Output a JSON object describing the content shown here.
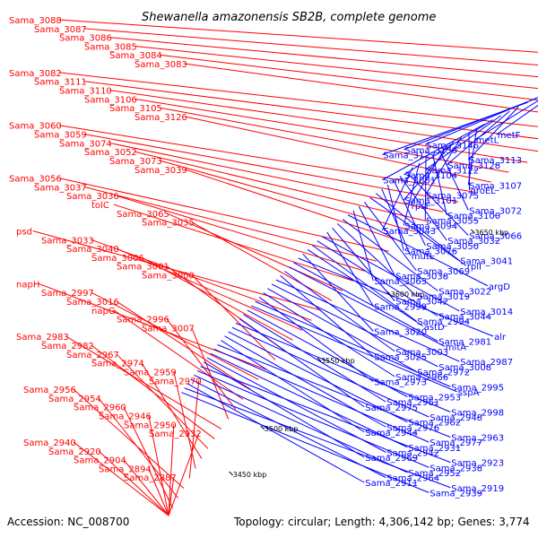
{
  "title": "Shewanella amazonensis SB2B, complete genome",
  "accession": "Accession: NC_008700",
  "summary": "Topology: circular; Length: 4,306,142 bp; Genes: 3,774",
  "colors": {
    "forward": "#ff0000",
    "reverse": "#0000ff",
    "backbone": "#888888",
    "tick_marker": "#2a8a2a"
  },
  "kbp_ticks": [
    "3450 kbp",
    "3500 kbp",
    "3550 kbp",
    "3600 kbp",
    "3650 kbp",
    "3700 kbp",
    "3750 kbp",
    "3800 kbp"
  ],
  "forward_genes": [
    "Sama_3088",
    "Sama_3087",
    "Sama_3086",
    "Sama_3085",
    "Sama_3084",
    "Sama_3083",
    "Sama_3082",
    "Sama_3111",
    "Sama_3110",
    "Sama_3106",
    "Sama_3105",
    "Sama_3126",
    "Sama_3060",
    "Sama_3059",
    "Sama_3074",
    "Sama_3052",
    "Sama_3073",
    "Sama_3039",
    "Sama_3056",
    "Sama_3037",
    "Sama_3036",
    "tolC",
    "Sama_3065",
    "Sama_3035",
    "psd",
    "Sama_3033",
    "Sama_3040",
    "Sama_3006",
    "Sama_3001",
    "Sama_3000",
    "napH",
    "Sama_2997",
    "Sama_3016",
    "napG",
    "Sama_2996",
    "Sama_3007",
    "Sama_2983",
    "Sama_2982",
    "Sama_2967",
    "Sama_2974",
    "Sama_2959",
    "Sama_2970",
    "Sama_2956",
    "Sama_2954",
    "Sama_2960",
    "Sama_2946",
    "Sama_2950",
    "Sama_2932",
    "Sama_2940",
    "Sama_2920",
    "Sama_2904",
    "Sama_2894",
    "Sama_2887"
  ],
  "reverse_genes": [
    "metF",
    "metL",
    "Sama_3146",
    "Sama_3130",
    "Sama_3127",
    "Sama_3113",
    "Sama_3128",
    "Sama_3122",
    "Sama_3104",
    "Sama_3081",
    "Sama_3107",
    "groEL",
    "Sama_3075",
    "Sama_3101",
    "rpsF",
    "Sama_3072",
    "Sama_3100",
    "Sama_3055",
    "Sama_3094",
    "Sama_3043",
    "Sama_3066",
    "Sama_3032",
    "Sama_3050",
    "Sama_3076",
    "mutL",
    "Sama_3041",
    "rplI",
    "Sama_3069",
    "Sama_3038",
    "Sama_3063",
    "argD",
    "Sama_3022",
    "Sama_3019",
    "Sama_3042",
    "Sama_2999",
    "Sama_3014",
    "Sama_3044",
    "Sama_2994",
    "astD",
    "Sama_3020",
    "alr",
    "Sama_2981",
    "mltA",
    "Sama_3003",
    "Sama_3025",
    "Sama_2987",
    "Sama_3008",
    "Sama_2972",
    "Sama_2966",
    "Sama_2973",
    "Sama_2995",
    "sspA",
    "Sama_2953",
    "Sama_2961",
    "Sama_2975",
    "Sama_2998",
    "Sama_2948",
    "Sama_2962",
    "Sama_2976",
    "Sama_2944",
    "Sama_2963",
    "Sama_2977",
    "Sama_2931",
    "Sama_2942",
    "Sama_2969",
    "Sama_2923",
    "Sama_2938",
    "Sama_2952",
    "Sama_2964",
    "Sama_2911",
    "Sama_2919",
    "Sama_2939"
  ]
}
